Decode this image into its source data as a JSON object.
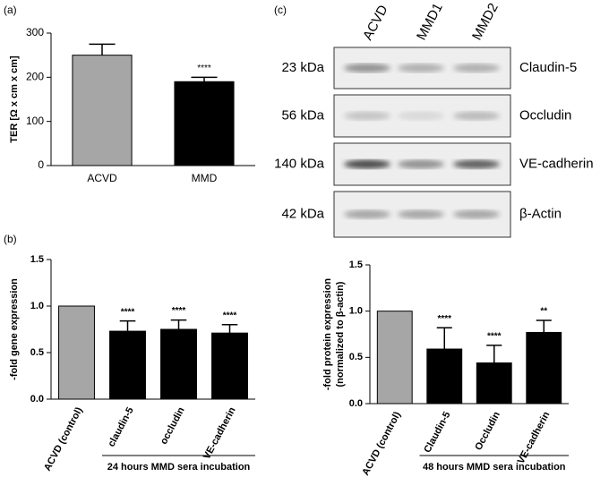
{
  "chart_data": [
    {
      "type": "bar",
      "panel_label": "(a)",
      "ylabel": [
        "TER [Ω x cm x cm]"
      ],
      "categories": [
        "ACVD",
        "MMD"
      ],
      "values": [
        250,
        190
      ],
      "errors": [
        25,
        10
      ],
      "colors": [
        "#a6a6a6",
        "#000000"
      ],
      "annotations": [
        null,
        "****"
      ],
      "ylim": [
        0,
        300
      ],
      "yticks": [
        0,
        100,
        200,
        300
      ]
    },
    {
      "type": "bar",
      "panel_label": "(b)",
      "ylabel": [
        "-fold gene expression"
      ],
      "categories": [
        "ACVD (control)",
        "claudin-5",
        "occludin",
        "VE-cadherin"
      ],
      "values": [
        1.0,
        0.73,
        0.75,
        0.71
      ],
      "errors": [
        0,
        0.11,
        0.1,
        0.09
      ],
      "colors": [
        "#a6a6a6",
        "#000000",
        "#000000",
        "#000000"
      ],
      "annotations": [
        null,
        "****",
        "****",
        "****"
      ],
      "group_label": "24 hours MMD sera incubation",
      "ylim": [
        0,
        1.5
      ],
      "yticks": [
        {
          "value": 0,
          "label": "0.0"
        },
        0.5,
        {
          "value": 1,
          "label": "1.0"
        },
        1.5
      ]
    },
    {
      "type": "bar",
      "ylabel": [
        "-fold protein expression",
        "(normalized to β-actin)"
      ],
      "categories": [
        "ACVD (control)",
        "Claudin-5",
        "Occludin",
        "VE-cadherin"
      ],
      "values": [
        1.0,
        0.59,
        0.44,
        0.77
      ],
      "errors": [
        0,
        0.23,
        0.19,
        0.13
      ],
      "colors": [
        "#a6a6a6",
        "#000000",
        "#000000",
        "#000000"
      ],
      "annotations": [
        null,
        "****",
        "****",
        "**"
      ],
      "group_label": "48 hours MMD sera incubation",
      "ylim": [
        0,
        1.5
      ],
      "yticks": [
        {
          "value": 0,
          "label": "0.0"
        },
        0.5,
        {
          "value": 1,
          "label": "1.0"
        },
        1.5
      ]
    }
  ],
  "blot": {
    "panel_label": "(c)",
    "lanes": [
      "ACVD",
      "MMD1",
      "MMD2"
    ],
    "rows": [
      {
        "kda": "23 kDa",
        "protein": "Claudin-5"
      },
      {
        "kda": "56 kDa",
        "protein": "Occludin"
      },
      {
        "kda": "140 kDa",
        "protein": "VE-cadherin"
      },
      {
        "kda": "42 kDa",
        "protein": "β-Actin"
      }
    ]
  }
}
